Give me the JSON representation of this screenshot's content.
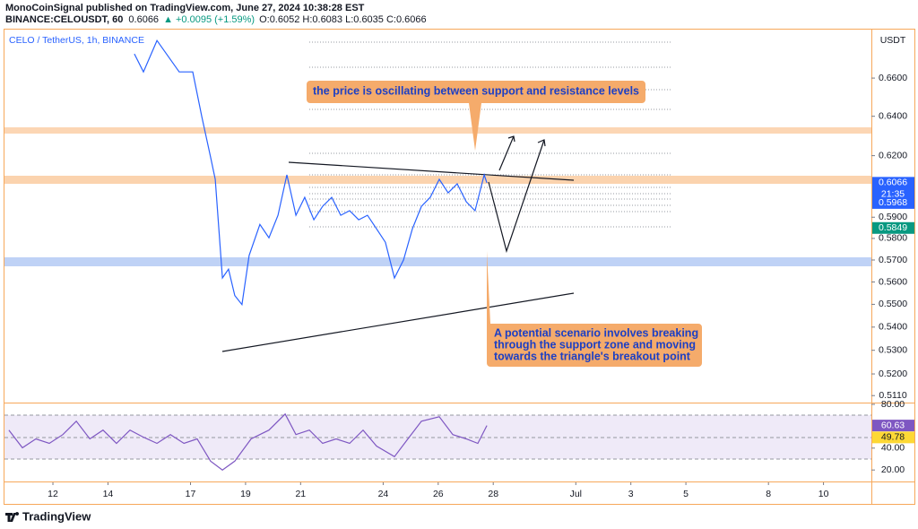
{
  "header": {
    "publisher": "MonoCoinSignal published on TradingView.com, June 27, 2024 10:38:28 EST",
    "symbol": "BINANCE:CELOUSDT, 60",
    "last": "0.6066",
    "change": "▲ +0.0095 (+1.59%)",
    "ohlc": "O:0.6052 H:0.6083 L:0.6035 C:0.6066",
    "footer": "TradingView"
  },
  "chart_data": [
    {
      "type": "line",
      "title": "CELO / TetherUS, 1h, BINANCE",
      "currency": "USDT",
      "color": "#2962ff",
      "log": true,
      "x": [
        14.96,
        15.29,
        15.78,
        16.59,
        17.08,
        17.41,
        17.73,
        17.9,
        18.16,
        18.38,
        18.61,
        18.87,
        19.13,
        19.52,
        19.85,
        20.18,
        20.5,
        20.83,
        21.15,
        21.48,
        21.8,
        22.13,
        22.46,
        22.78,
        23.11,
        23.43,
        23.76,
        24.08,
        24.41,
        24.74,
        25.06,
        25.39,
        25.71,
        26.04,
        26.36,
        26.69,
        27.02,
        27.34,
        27.67,
        27.77
      ],
      "values": [
        0.673,
        0.6633,
        0.6803,
        0.6633,
        0.6633,
        0.6398,
        0.6193,
        0.6083,
        0.5618,
        0.5658,
        0.5539,
        0.5499,
        0.5721,
        0.5866,
        0.5803,
        0.5909,
        0.6105,
        0.5909,
        0.5995,
        0.5888,
        0.5952,
        0.5995,
        0.5909,
        0.5931,
        0.5888,
        0.5909,
        0.5845,
        0.5782,
        0.5618,
        0.57,
        0.5845,
        0.5952,
        0.5995,
        0.6083,
        0.6017,
        0.6061,
        0.5974,
        0.5931,
        0.6105,
        0.6066
      ],
      "xlim": [
        10.24,
        41.74
      ],
      "xticks": [
        12,
        14,
        17,
        19,
        21,
        24,
        26,
        28,
        {
          "value": 31,
          "label": "Jul"
        },
        {
          "value": 33,
          "label": "3"
        },
        {
          "value": 35,
          "label": "5"
        },
        {
          "value": 38,
          "label": "8"
        },
        {
          "value": 40,
          "label": "10"
        }
      ],
      "ylim": [
        0.5085,
        0.6863
      ],
      "yticks": [
        {
          "value": 0.66,
          "label": "0.6600"
        },
        {
          "value": 0.64,
          "label": "0.6400"
        },
        {
          "value": 0.62,
          "label": "0.6200"
        },
        {
          "value": 0.59,
          "label": "0.5900"
        },
        {
          "value": 0.58,
          "label": "0.5800"
        },
        {
          "value": 0.57,
          "label": "0.5700"
        },
        {
          "value": 0.56,
          "label": "0.5600"
        },
        {
          "value": 0.55,
          "label": "0.5500"
        },
        {
          "value": 0.54,
          "label": "0.5400"
        },
        {
          "value": 0.53,
          "label": "0.5300"
        },
        {
          "value": 0.52,
          "label": "0.5200"
        },
        {
          "value": 0.511,
          "label": "0.5110"
        }
      ],
      "price_markers": [
        {
          "value": 0.6066,
          "color": "#2962ff",
          "countdown": "21:35"
        },
        {
          "value": 0.5968,
          "color": "#2962ff"
        },
        {
          "value": 0.5849,
          "color": "#089981"
        }
      ],
      "annotations": [
        "the price is oscillating between support and resistance levels",
        [
          "A potential scenario involves breaking",
          "through the support zone and moving",
          "towards the triangle's breakout point"
        ]
      ]
    },
    {
      "type": "line",
      "color": "#7e57c2",
      "xlim": [
        10.24,
        41.74
      ],
      "x": [
        10.4,
        10.89,
        11.38,
        11.87,
        12.36,
        12.85,
        13.34,
        13.82,
        14.31,
        14.8,
        15.29,
        15.78,
        16.27,
        16.76,
        17.24,
        17.73,
        18.16,
        18.61,
        19.2,
        19.85,
        20.44,
        20.83,
        21.32,
        21.8,
        22.29,
        22.78,
        23.27,
        23.76,
        24.41,
        24.9,
        25.39,
        26.04,
        26.53,
        27.02,
        27.44,
        27.77
      ],
      "values": [
        56.5,
        40.3,
        48.4,
        44.3,
        52.4,
        64.6,
        48.4,
        56.5,
        44.3,
        56.5,
        50,
        44.3,
        52.4,
        44.3,
        48.4,
        28.1,
        20,
        28.1,
        48.4,
        56.5,
        71.1,
        52.4,
        56.5,
        44.3,
        48.4,
        44.3,
        56.5,
        41.9,
        32.2,
        48.4,
        64.6,
        68.7,
        52.4,
        48.4,
        44.3,
        60.63
      ],
      "ylim": [
        9.5,
        80.8
      ],
      "yticks": [
        {
          "value": 80,
          "label": "80.00"
        },
        {
          "value": 40,
          "label": "40.00"
        },
        {
          "value": 20,
          "label": "20.00"
        }
      ],
      "value_markers": [
        {
          "value": 60.63,
          "color": "#7e57c2",
          "text_color": "#ffffff"
        },
        {
          "value": 49.78,
          "color": "#fdd835",
          "text_color": "#131722"
        }
      ]
    }
  ]
}
